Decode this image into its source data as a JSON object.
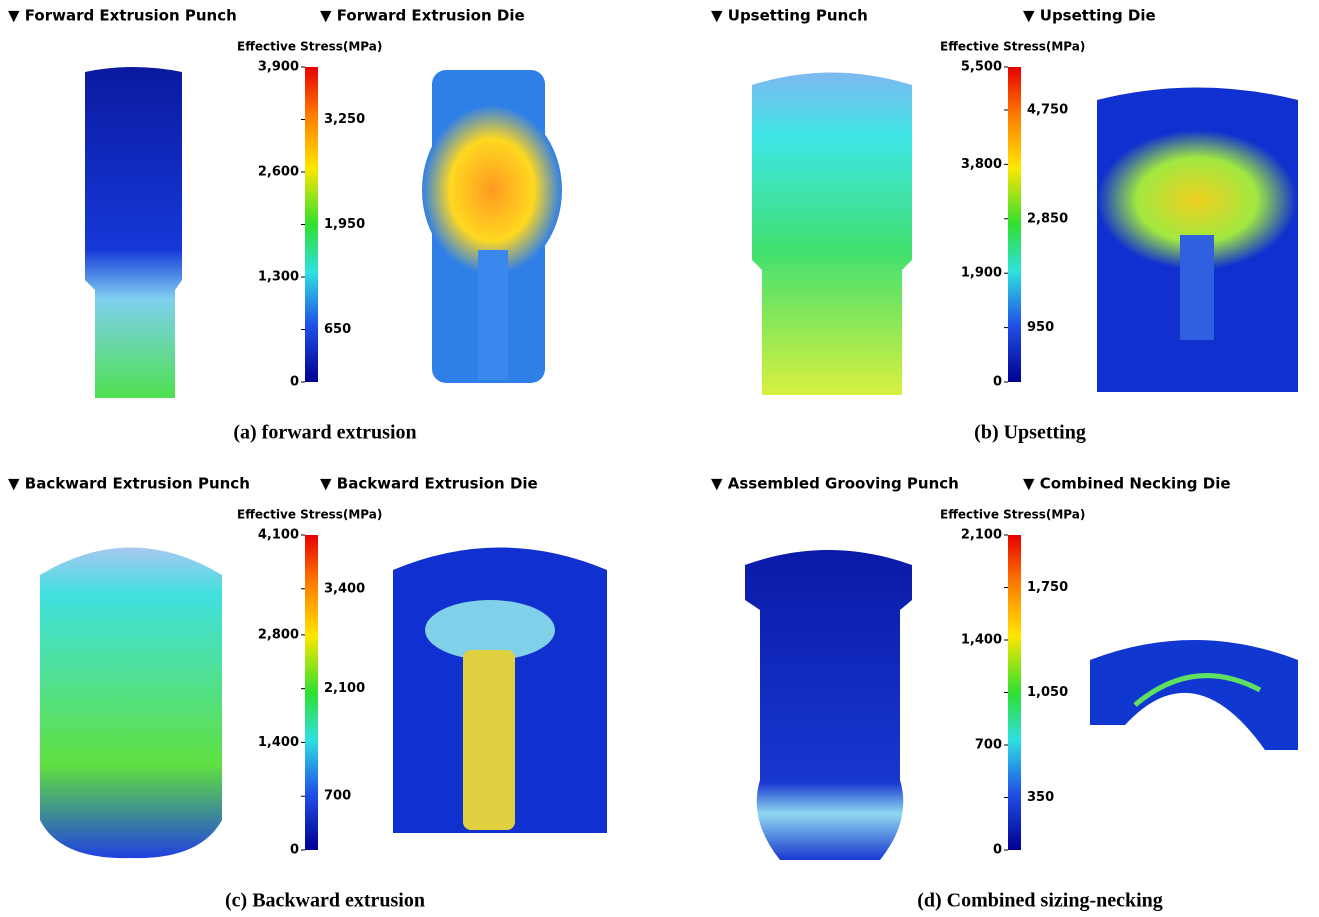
{
  "panels": [
    {
      "punch_title": "▼ Forward Extrusion Punch",
      "die_title": "▼ Forward Extrusion Die",
      "legend": {
        "title": "Effective Stress(MPa)",
        "range": [
          0,
          3900
        ],
        "ticks": [
          0,
          650,
          {
            "value": 1300,
            "label": "1,300"
          },
          {
            "value": 1950,
            "label": "1,950"
          },
          {
            "value": 2600,
            "label": "2,600"
          },
          {
            "value": 3250,
            "label": "3,250"
          },
          {
            "value": 3900,
            "label": "3,900"
          }
        ]
      },
      "caption": "(a) forward extrusion"
    },
    {
      "punch_title": "▼ Upsetting Punch",
      "die_title": "▼ Upsetting Die",
      "legend": {
        "title": "Effective Stress(MPa)",
        "range": [
          0,
          5500
        ],
        "ticks": [
          0,
          950,
          {
            "value": 1900,
            "label": "1,900"
          },
          {
            "value": 2850,
            "label": "2,850"
          },
          {
            "value": 3800,
            "label": "3,800"
          },
          {
            "value": 4750,
            "label": "4,750"
          },
          {
            "value": 5500,
            "label": "5,500"
          }
        ]
      },
      "caption": "(b) Upsetting"
    },
    {
      "punch_title": "▼ Backward Extrusion Punch",
      "die_title": "▼ Backward Extrusion Die",
      "legend": {
        "title": "Effective Stress(MPa)",
        "range": [
          0,
          4100
        ],
        "ticks": [
          0,
          700,
          {
            "value": 1400,
            "label": "1,400"
          },
          {
            "value": 2100,
            "label": "2,100"
          },
          {
            "value": 2800,
            "label": "2,800"
          },
          {
            "value": 3400,
            "label": "3,400"
          },
          {
            "value": 4100,
            "label": "4,100"
          }
        ]
      },
      "caption": "(c) Backward extrusion"
    },
    {
      "punch_title": "▼ Assembled Grooving Punch",
      "die_title": "▼ Combined Necking Die",
      "legend": {
        "title": "Effective Stress(MPa)",
        "range": [
          0,
          2100
        ],
        "ticks": [
          0,
          350,
          700,
          {
            "value": 1050,
            "label": "1,050"
          },
          {
            "value": 1400,
            "label": "1,400"
          },
          {
            "value": 1750,
            "label": "1,750"
          },
          {
            "value": 2100,
            "label": "2,100"
          }
        ]
      },
      "caption": "(d) Combined sizing-necking"
    }
  ]
}
